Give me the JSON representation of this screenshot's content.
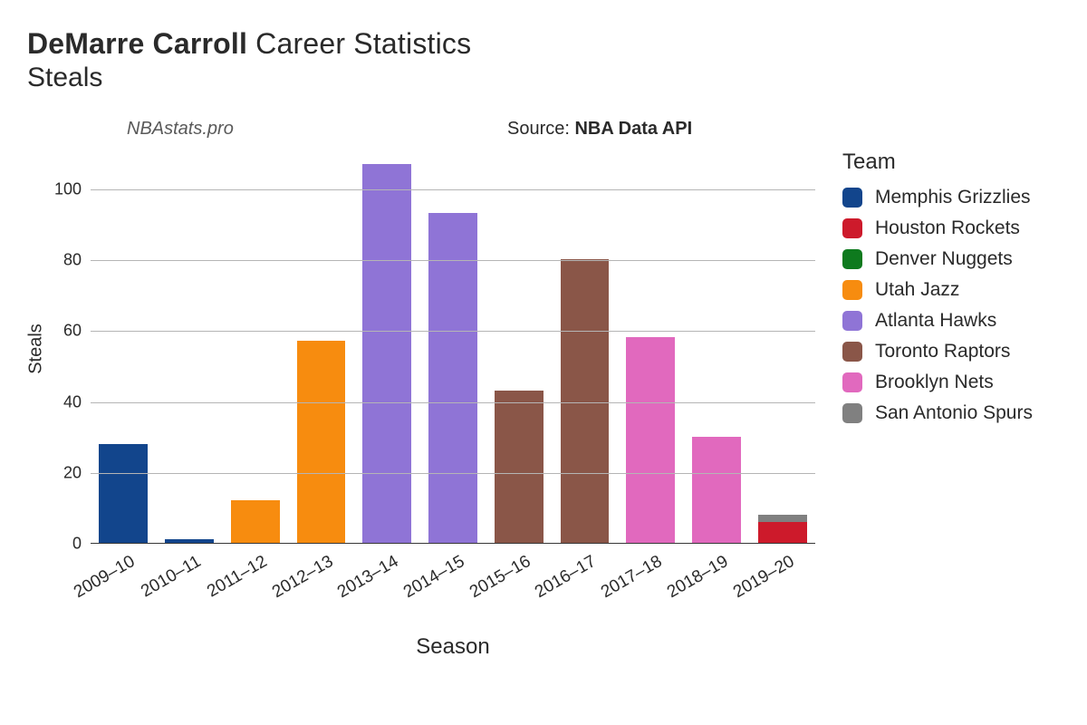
{
  "title": {
    "bold": "DeMarre Carroll",
    "rest": " Career Statistics"
  },
  "subtitle": "Steals",
  "meta": {
    "site": "NBAstats.pro",
    "source_prefix": "Source: ",
    "source_name": "NBA Data API"
  },
  "chart": {
    "type": "bar-stacked",
    "xlabel": "Season",
    "ylabel": "Steals",
    "ylim": [
      0,
      110
    ],
    "yticks": [
      0,
      20,
      40,
      60,
      80,
      100
    ],
    "background_color": "#ffffff",
    "grid_color": "#b5b5b5",
    "axis_color": "#383838",
    "bar_width_ratio": 0.74,
    "label_fontsize": 20,
    "tick_fontsize": 18,
    "xtick_rotation_deg": -30,
    "seasons": [
      "2009–10",
      "2010–11",
      "2011–12",
      "2012–13",
      "2013–14",
      "2014–15",
      "2015–16",
      "2016–17",
      "2017–18",
      "2018–19",
      "2019–20"
    ],
    "bars": [
      [
        {
          "team": "Memphis Grizzlies",
          "value": 28
        }
      ],
      [
        {
          "team": "Memphis Grizzlies",
          "value": 1
        }
      ],
      [
        {
          "team": "Utah Jazz",
          "value": 12
        }
      ],
      [
        {
          "team": "Utah Jazz",
          "value": 57
        }
      ],
      [
        {
          "team": "Atlanta Hawks",
          "value": 107
        }
      ],
      [
        {
          "team": "Atlanta Hawks",
          "value": 93
        }
      ],
      [
        {
          "team": "Toronto Raptors",
          "value": 43
        }
      ],
      [
        {
          "team": "Toronto Raptors",
          "value": 80
        }
      ],
      [
        {
          "team": "Brooklyn Nets",
          "value": 58
        }
      ],
      [
        {
          "team": "Brooklyn Nets",
          "value": 30
        }
      ],
      [
        {
          "team": "Houston Rockets",
          "value": 6
        },
        {
          "team": "San Antonio Spurs",
          "value": 2
        }
      ]
    ],
    "teams": [
      {
        "name": "Memphis Grizzlies",
        "color": "#12458c"
      },
      {
        "name": "Houston Rockets",
        "color": "#cd1a2b"
      },
      {
        "name": "Denver Nuggets",
        "color": "#0e7a1e"
      },
      {
        "name": "Utah Jazz",
        "color": "#f78c0f"
      },
      {
        "name": "Atlanta Hawks",
        "color": "#8f74d6"
      },
      {
        "name": "Toronto Raptors",
        "color": "#8a5648"
      },
      {
        "name": "Brooklyn Nets",
        "color": "#e169be"
      },
      {
        "name": "San Antonio Spurs",
        "color": "#808080"
      }
    ],
    "legend_title": "Team",
    "legend_fontsize": 21
  }
}
